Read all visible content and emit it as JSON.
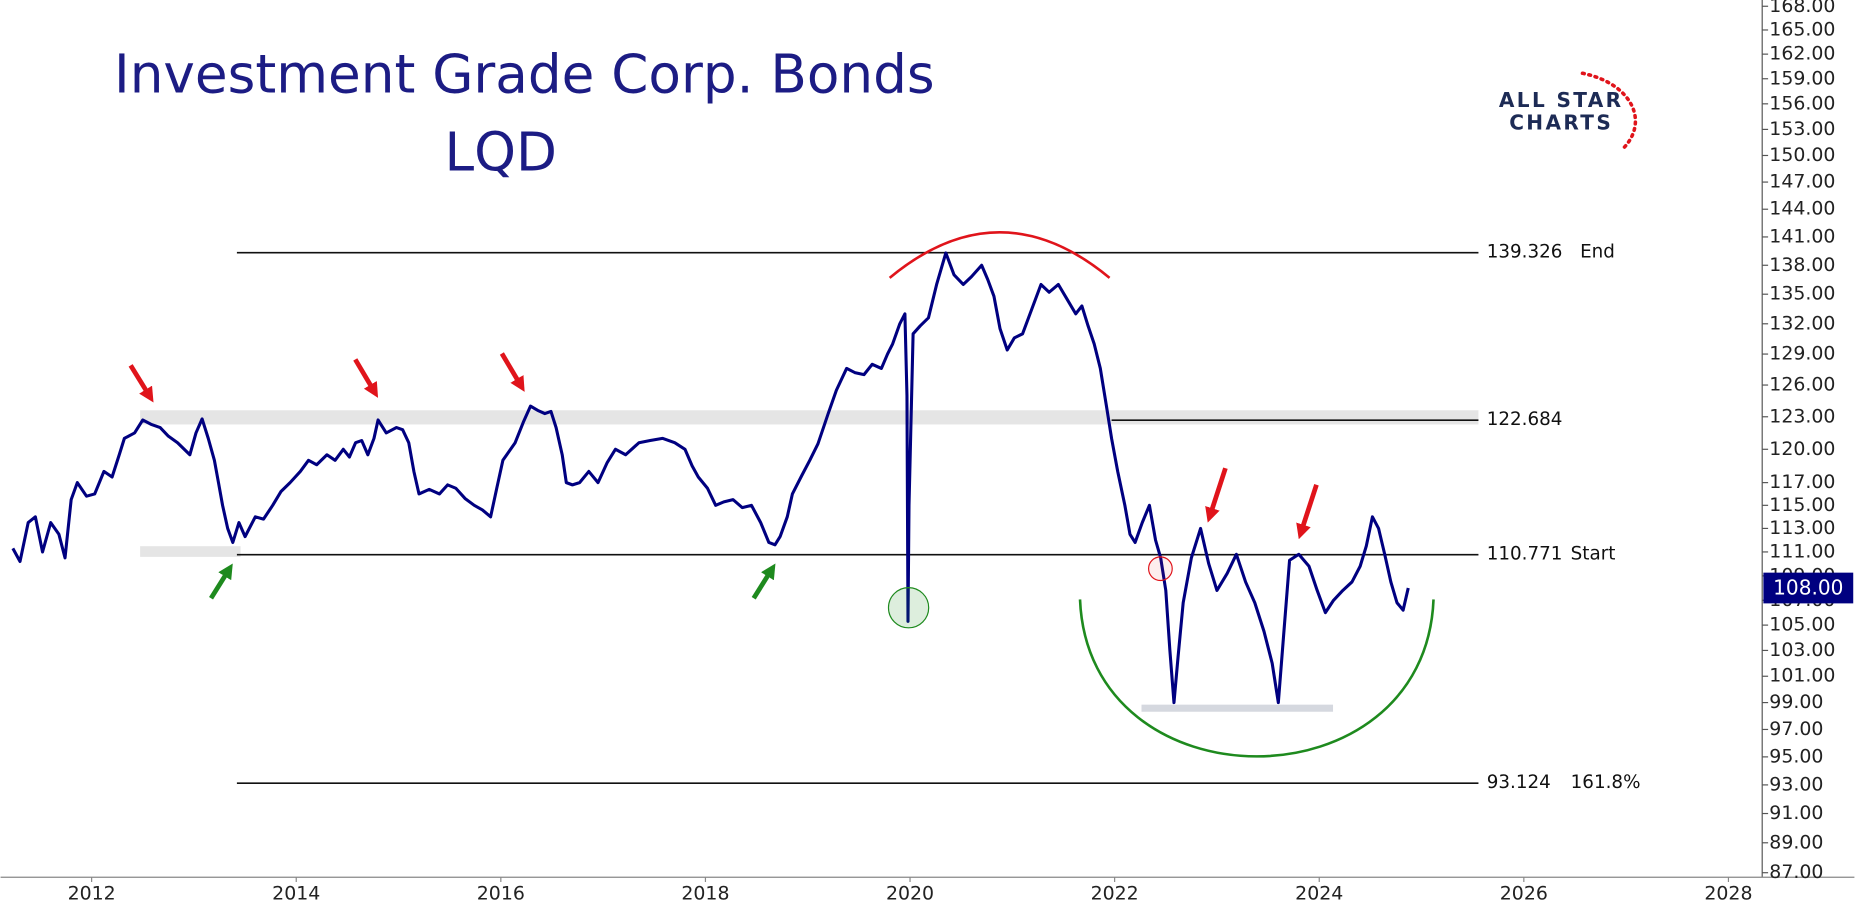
{
  "chart_data": {
    "type": "line",
    "title": "Investment Grade Corp. Bonds",
    "subtitle": "LQD",
    "logo": [
      "ALL STAR",
      "CHARTS"
    ],
    "log_scale": true,
    "xlim": [
      2011.11,
      2028.33
    ],
    "xticks": [
      2012,
      2014,
      2016,
      2018,
      2020,
      2022,
      2024,
      2026,
      2028
    ],
    "ylim": [
      86.7,
      168.8
    ],
    "yticks": [
      {
        "value": 168,
        "label": "168.00"
      },
      {
        "value": 165,
        "label": "165.00"
      },
      {
        "value": 162,
        "label": "162.00"
      },
      {
        "value": 159,
        "label": "159.00"
      },
      {
        "value": 156,
        "label": "156.00"
      },
      {
        "value": 153,
        "label": "153.00"
      },
      {
        "value": 150,
        "label": "150.00"
      },
      {
        "value": 147,
        "label": "147.00"
      },
      {
        "value": 144,
        "label": "144.00"
      },
      {
        "value": 141,
        "label": "141.00"
      },
      {
        "value": 138,
        "label": "138.00"
      },
      {
        "value": 135,
        "label": "135.00"
      },
      {
        "value": 132,
        "label": "132.00"
      },
      {
        "value": 129,
        "label": "129.00"
      },
      {
        "value": 126,
        "label": "126.00"
      },
      {
        "value": 123,
        "label": "123.00"
      },
      {
        "value": 120,
        "label": "120.00"
      },
      {
        "value": 117,
        "label": "117.00"
      },
      {
        "value": 115,
        "label": "115.00"
      },
      {
        "value": 113,
        "label": "113.00"
      },
      {
        "value": 111,
        "label": "111.00"
      },
      {
        "value": 109,
        "label": "109.00"
      },
      {
        "value": 107,
        "label": "107.00"
      },
      {
        "value": 105,
        "label": "105.00"
      },
      {
        "value": 103,
        "label": "103.00"
      },
      {
        "value": 101,
        "label": "101.00"
      },
      {
        "value": 99,
        "label": "99.00"
      },
      {
        "value": 97,
        "label": "97.00"
      },
      {
        "value": 95,
        "label": "95.00"
      },
      {
        "value": 93,
        "label": "93.00"
      },
      {
        "value": 91,
        "label": "91.00"
      },
      {
        "value": 89,
        "label": "89.00"
      },
      {
        "value": 87,
        "label": "87.00"
      }
    ],
    "current_price": {
      "value": 108,
      "label": "108.00"
    },
    "hlines": [
      {
        "value": 139.326,
        "name": "End",
        "from": 2013.42
      },
      {
        "value": 122.684,
        "from": 2021.97
      },
      {
        "value": 110.771,
        "name": "Start",
        "from": 2013.42
      },
      {
        "value": 93.124,
        "name": "161.8%",
        "from": 2013.42
      }
    ],
    "series": [
      {
        "name": "LQD",
        "color": "#000080",
        "x": [
          2011.23,
          2011.3,
          2011.38,
          2011.45,
          2011.52,
          2011.6,
          2011.68,
          2011.74,
          2011.8,
          2011.86,
          2011.95,
          2012.03,
          2012.12,
          2012.2,
          2012.27,
          2012.32,
          2012.42,
          2012.5,
          2012.58,
          2012.67,
          2012.75,
          2012.84,
          2012.96,
          2013.02,
          2013.08,
          2013.14,
          2013.2,
          2013.24,
          2013.28,
          2013.33,
          2013.38,
          2013.44,
          2013.5,
          2013.6,
          2013.68,
          2013.77,
          2013.85,
          2013.94,
          2014.04,
          2014.12,
          2014.2,
          2014.3,
          2014.38,
          2014.46,
          2014.52,
          2014.58,
          2014.64,
          2014.7,
          2014.76,
          2014.8,
          2014.88,
          2014.98,
          2015.04,
          2015.1,
          2015.15,
          2015.2,
          2015.3,
          2015.4,
          2015.48,
          2015.56,
          2015.65,
          2015.74,
          2015.82,
          2015.9,
          2015.96,
          2016.02,
          2016.08,
          2016.14,
          2016.22,
          2016.29,
          2016.36,
          2016.43,
          2016.49,
          2016.54,
          2016.6,
          2016.64,
          2016.7,
          2016.77,
          2016.86,
          2016.95,
          2017.04,
          2017.12,
          2017.22,
          2017.35,
          2017.46,
          2017.58,
          2017.7,
          2017.8,
          2017.87,
          2017.93,
          2018.02,
          2018.1,
          2018.18,
          2018.27,
          2018.36,
          2018.45,
          2018.54,
          2018.62,
          2018.68,
          2018.73,
          2018.8,
          2018.85,
          2018.94,
          2019.02,
          2019.1,
          2019.2,
          2019.28,
          2019.38,
          2019.46,
          2019.55,
          2019.63,
          2019.72,
          2019.78,
          2019.83,
          2019.9,
          2019.95,
          2019.97,
          2019.98,
          2019.99,
          2020.03,
          2020.1,
          2020.18,
          2020.26,
          2020.35,
          2020.43,
          2020.52,
          2020.6,
          2020.7,
          2020.76,
          2020.82,
          2020.88,
          2020.95,
          2021.02,
          2021.1,
          2021.18,
          2021.28,
          2021.36,
          2021.45,
          2021.54,
          2021.62,
          2021.68,
          2021.74,
          2021.8,
          2021.86,
          2021.92,
          2021.97,
          2022.03,
          2022.1,
          2022.15,
          2022.2,
          2022.27,
          2022.34,
          2022.4,
          2022.45,
          2022.5,
          2022.54,
          2022.58,
          2022.62,
          2022.67,
          2022.75,
          2022.84,
          2022.92,
          2023.0,
          2023.1,
          2023.19,
          2023.28,
          2023.37,
          2023.46,
          2023.54,
          2023.6,
          2023.65,
          2023.71,
          2023.8,
          2023.9,
          2023.98,
          2024.06,
          2024.14,
          2024.23,
          2024.32,
          2024.4,
          2024.46,
          2024.52,
          2024.58,
          2024.64,
          2024.7,
          2024.76,
          2024.82,
          2024.87
        ],
        "values": [
          111.3,
          110.2,
          113.5,
          114,
          111,
          113.5,
          112.5,
          110.5,
          115.5,
          117,
          115.8,
          116,
          118,
          117.5,
          119.5,
          121,
          121.5,
          122.7,
          122.3,
          122,
          121.2,
          120.6,
          119.5,
          121.5,
          122.8,
          121,
          119,
          117,
          115,
          113,
          111.8,
          113.5,
          112.3,
          114,
          113.8,
          115,
          116.2,
          117,
          118,
          119,
          118.6,
          119.5,
          119,
          120,
          119.3,
          120.6,
          120.8,
          119.5,
          121,
          122.7,
          121.5,
          122,
          121.8,
          120.6,
          118,
          116,
          116.4,
          116,
          116.8,
          116.5,
          115.6,
          115,
          114.6,
          114,
          116.5,
          119,
          119.8,
          120.6,
          122.5,
          124,
          123.6,
          123.3,
          123.5,
          122,
          119.5,
          117,
          116.8,
          117,
          118,
          117,
          118.8,
          120,
          119.5,
          120.6,
          120.8,
          121,
          120.6,
          120,
          118.5,
          117.5,
          116.5,
          115,
          115.3,
          115.5,
          114.8,
          115,
          113.5,
          111.8,
          111.6,
          112.3,
          114,
          116,
          117.6,
          119,
          120.5,
          123.3,
          125.5,
          127.6,
          127.2,
          127,
          128,
          127.6,
          129,
          130,
          132,
          133,
          125,
          105.3,
          115,
          131,
          131.8,
          132.6,
          136,
          139.3,
          137,
          136,
          136.8,
          138,
          136.5,
          134.8,
          131.5,
          129.4,
          130.6,
          131,
          133.2,
          136,
          135.2,
          136,
          134.4,
          133,
          133.8,
          131.8,
          130,
          127.6,
          124,
          121,
          118,
          115,
          112.5,
          111.8,
          113.5,
          115,
          112,
          110.5,
          107.8,
          103,
          99,
          102.5,
          106.8,
          110.5,
          113,
          110,
          107.8,
          109.2,
          110.8,
          108.5,
          106.8,
          104.5,
          102,
          99,
          104,
          110.3,
          110.8,
          109.8,
          107.8,
          106,
          107,
          107.8,
          108.5,
          109.8,
          111.5,
          114,
          113,
          110.8,
          108.5,
          106.8,
          106.2,
          108
        ]
      }
    ]
  }
}
